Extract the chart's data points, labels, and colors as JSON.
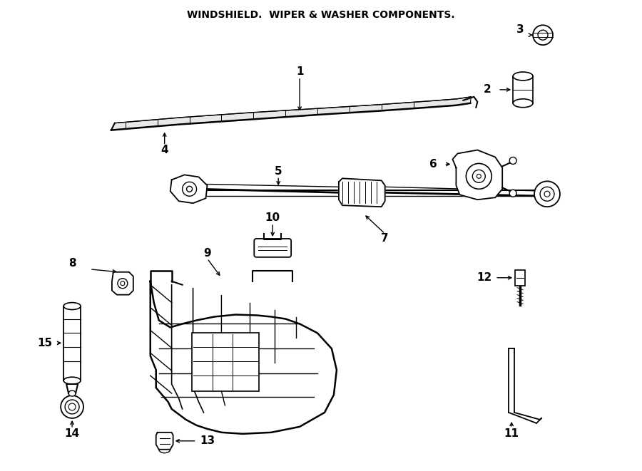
{
  "title": "WINDSHIELD.  WIPER & WASHER COMPONENTS.",
  "background_color": "#ffffff",
  "line_color": "#000000",
  "figsize": [
    9.0,
    6.61
  ],
  "dpi": 100
}
